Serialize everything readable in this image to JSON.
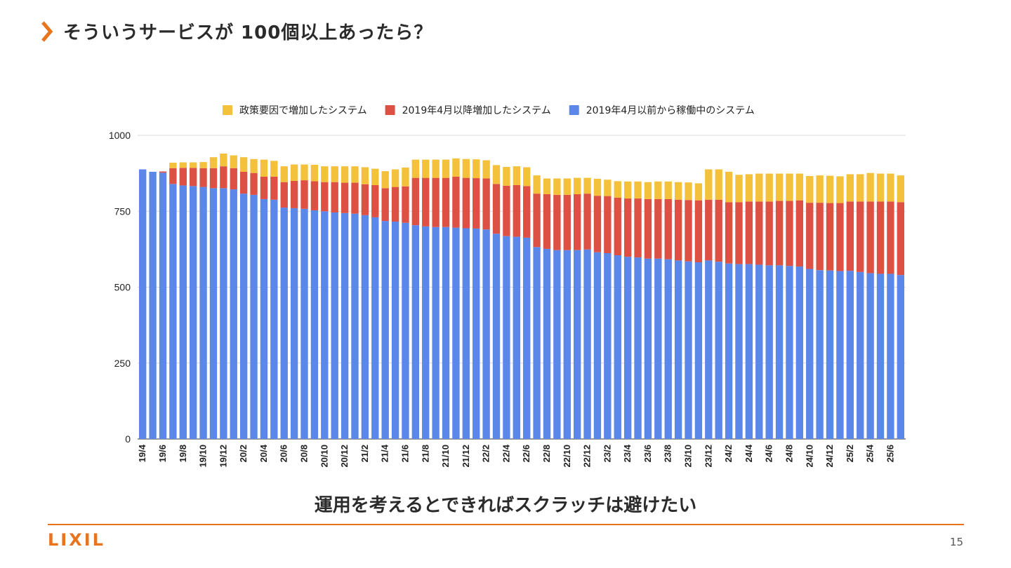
{
  "slide": {
    "title": "そういうサービスが 100個以上あったら？",
    "subtitle": "運用を考えるとできればスクラッチは避けたい",
    "logo": "LIXIL",
    "page_number": "15",
    "accent_color": "#e8741e"
  },
  "chart_data": {
    "type": "bar",
    "stacked": true,
    "ylim": [
      0,
      1000
    ],
    "yticks": [
      0,
      250,
      500,
      750,
      1000
    ],
    "grid": true,
    "legend_position": "top",
    "categories": [
      "19/4",
      "19/5",
      "19/6",
      "19/7",
      "19/8",
      "19/9",
      "19/10",
      "19/11",
      "19/12",
      "20/1",
      "20/2",
      "20/3",
      "20/4",
      "20/5",
      "20/6",
      "20/7",
      "20/8",
      "20/9",
      "20/10",
      "20/11",
      "20/12",
      "21/1",
      "21/2",
      "21/3",
      "21/4",
      "21/5",
      "21/6",
      "21/7",
      "21/8",
      "21/9",
      "21/10",
      "21/11",
      "21/12",
      "22/1",
      "22/2",
      "22/3",
      "22/4",
      "22/5",
      "22/6",
      "22/7",
      "22/8",
      "22/9",
      "22/10",
      "22/11",
      "22/12",
      "23/1",
      "23/2",
      "23/3",
      "23/4",
      "23/5",
      "23/6",
      "23/7",
      "23/8",
      "23/9",
      "23/10",
      "23/11",
      "23/12",
      "24/1",
      "24/2",
      "24/3",
      "24/4",
      "24/5",
      "24/6",
      "24/7",
      "24/8",
      "24/9",
      "24/10",
      "24/11",
      "24/12",
      "25/1",
      "25/2",
      "25/3",
      "25/4",
      "25/5",
      "25/6",
      "25/7"
    ],
    "tick_labels": [
      "19/4",
      "19/6",
      "19/8",
      "19/10",
      "19/12",
      "20/2",
      "20/4",
      "20/6",
      "20/8",
      "20/10",
      "20/12",
      "21/2",
      "21/4",
      "21/6",
      "21/8",
      "21/10",
      "21/12",
      "22/2",
      "22/4",
      "22/6",
      "22/8",
      "22/10",
      "22/12",
      "23/2",
      "23/4",
      "23/6",
      "23/8",
      "23/10",
      "23/12",
      "24/2",
      "24/4",
      "24/6",
      "24/8",
      "24/10",
      "24/12",
      "25/2",
      "25/4",
      "25/6"
    ],
    "series": [
      {
        "name": "2019年4月以前から稼働中のシステム",
        "color": "#5b87e8",
        "values": [
          888,
          880,
          877,
          840,
          835,
          833,
          830,
          826,
          826,
          822,
          808,
          804,
          790,
          788,
          762,
          760,
          758,
          753,
          750,
          746,
          744,
          742,
          737,
          730,
          718,
          716,
          712,
          704,
          700,
          698,
          698,
          696,
          694,
          693,
          690,
          676,
          668,
          666,
          663,
          632,
          626,
          622,
          622,
          622,
          624,
          615,
          612,
          605,
          600,
          598,
          594,
          594,
          592,
          588,
          585,
          582,
          588,
          584,
          578,
          576,
          576,
          574,
          572,
          572,
          570,
          568,
          560,
          556,
          555,
          553,
          554,
          550,
          546,
          544,
          544,
          540
        ]
      },
      {
        "name": "2019年4月以降増加したシステム",
        "color": "#dc5144",
        "values": [
          0,
          0,
          4,
          52,
          58,
          60,
          62,
          66,
          72,
          70,
          72,
          72,
          74,
          76,
          84,
          90,
          94,
          96,
          96,
          100,
          100,
          102,
          102,
          106,
          108,
          114,
          120,
          156,
          160,
          162,
          162,
          168,
          166,
          166,
          168,
          164,
          166,
          170,
          170,
          176,
          180,
          182,
          182,
          184,
          184,
          186,
          188,
          190,
          192,
          194,
          196,
          196,
          198,
          200,
          202,
          204,
          200,
          204,
          202,
          204,
          206,
          208,
          210,
          212,
          214,
          218,
          218,
          222,
          222,
          224,
          228,
          232,
          236,
          238,
          238,
          240
        ]
      },
      {
        "name": "政策要因で増加したシステム",
        "color": "#f4c13d",
        "values": [
          0,
          0,
          0,
          18,
          18,
          18,
          20,
          36,
          42,
          42,
          48,
          46,
          56,
          52,
          52,
          54,
          52,
          54,
          52,
          52,
          54,
          54,
          56,
          54,
          56,
          58,
          62,
          60,
          60,
          60,
          60,
          60,
          62,
          62,
          60,
          62,
          62,
          62,
          62,
          60,
          52,
          54,
          54,
          54,
          52,
          56,
          54,
          54,
          56,
          56,
          56,
          58,
          58,
          58,
          58,
          56,
          100,
          100,
          100,
          90,
          90,
          92,
          92,
          90,
          90,
          88,
          88,
          90,
          90,
          88,
          90,
          90,
          94,
          92,
          92,
          88
        ]
      }
    ]
  }
}
